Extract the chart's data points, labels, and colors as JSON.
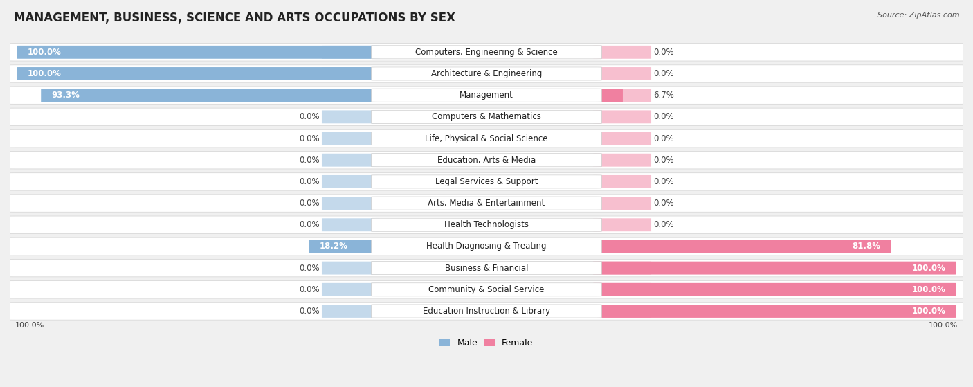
{
  "title": "MANAGEMENT, BUSINESS, SCIENCE AND ARTS OCCUPATIONS BY SEX",
  "source": "Source: ZipAtlas.com",
  "categories": [
    "Computers, Engineering & Science",
    "Architecture & Engineering",
    "Management",
    "Computers & Mathematics",
    "Life, Physical & Social Science",
    "Education, Arts & Media",
    "Legal Services & Support",
    "Arts, Media & Entertainment",
    "Health Technologists",
    "Health Diagnosing & Treating",
    "Business & Financial",
    "Community & Social Service",
    "Education Instruction & Library"
  ],
  "male": [
    100.0,
    100.0,
    93.3,
    0.0,
    0.0,
    0.0,
    0.0,
    0.0,
    0.0,
    18.2,
    0.0,
    0.0,
    0.0
  ],
  "female": [
    0.0,
    0.0,
    6.7,
    0.0,
    0.0,
    0.0,
    0.0,
    0.0,
    0.0,
    81.8,
    100.0,
    100.0,
    100.0
  ],
  "male_color": "#8ab4d8",
  "female_color": "#f080a0",
  "bg_color": "#f0f0f0",
  "row_bg": "#ffffff",
  "title_fontsize": 12,
  "label_fontsize": 8.5,
  "value_fontsize": 8.5,
  "bottom_labels": [
    "100.0%",
    "100.0%"
  ]
}
